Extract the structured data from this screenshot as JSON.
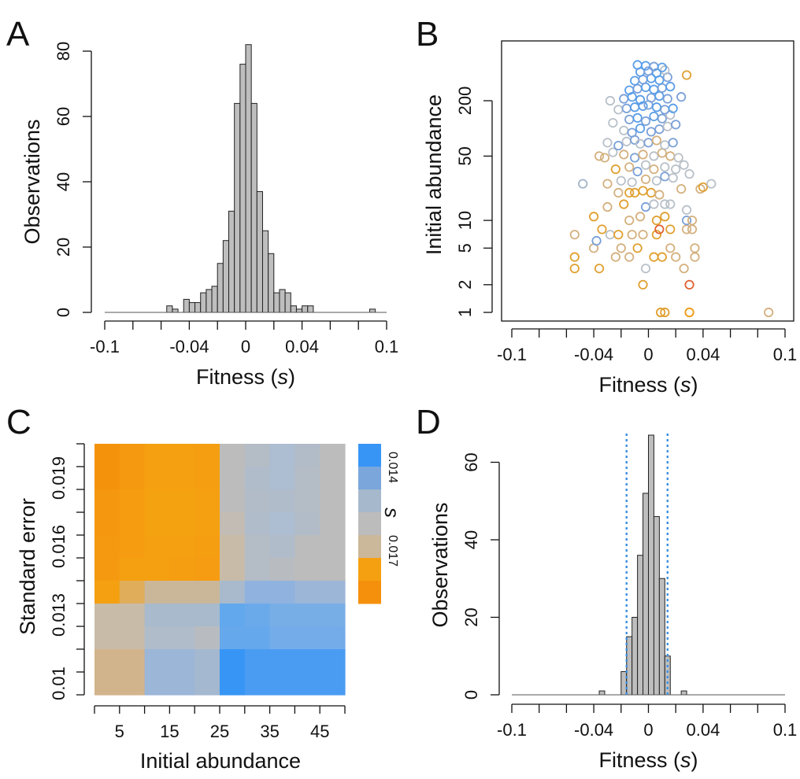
{
  "chart_data": [
    {
      "panel": "A",
      "type": "bar",
      "xlabel": "Fitness (s)",
      "xlabel_main": "Fitness (",
      "xlabel_var": "s",
      "xlabel_end": ")",
      "ylabel": "Observations",
      "xlim": [
        -0.1,
        0.1
      ],
      "ylim": [
        0,
        80
      ],
      "xticks": [
        -0.1,
        -0.04,
        0,
        0.04,
        0.1
      ],
      "xtick_labels": [
        "-0.1",
        "-0.04",
        "0",
        "0.04",
        "0.1"
      ],
      "yticks": [
        0,
        20,
        40,
        60,
        80
      ],
      "ytick_labels": [
        "0",
        "20",
        "40",
        "60",
        "80"
      ],
      "bin_width": 0.004,
      "bins": [
        {
          "x0": -0.056,
          "count": 2
        },
        {
          "x0": -0.052,
          "count": 1
        },
        {
          "x0": -0.048,
          "count": 0
        },
        {
          "x0": -0.044,
          "count": 4
        },
        {
          "x0": -0.04,
          "count": 3
        },
        {
          "x0": -0.036,
          "count": 3
        },
        {
          "x0": -0.032,
          "count": 6
        },
        {
          "x0": -0.028,
          "count": 7
        },
        {
          "x0": -0.024,
          "count": 8
        },
        {
          "x0": -0.02,
          "count": 15
        },
        {
          "x0": -0.016,
          "count": 22
        },
        {
          "x0": -0.012,
          "count": 31
        },
        {
          "x0": -0.008,
          "count": 64
        },
        {
          "x0": -0.004,
          "count": 76
        },
        {
          "x0": 0.0,
          "count": 82
        },
        {
          "x0": 0.004,
          "count": 64
        },
        {
          "x0": 0.008,
          "count": 37
        },
        {
          "x0": 0.012,
          "count": 25
        },
        {
          "x0": 0.016,
          "count": 18
        },
        {
          "x0": 0.02,
          "count": 6
        },
        {
          "x0": 0.024,
          "count": 7
        },
        {
          "x0": 0.028,
          "count": 6
        },
        {
          "x0": 0.032,
          "count": 2
        },
        {
          "x0": 0.036,
          "count": 1
        },
        {
          "x0": 0.04,
          "count": 2
        },
        {
          "x0": 0.044,
          "count": 2
        },
        {
          "x0": 0.088,
          "count": 1
        }
      ],
      "fill": "#bebebe"
    },
    {
      "panel": "B",
      "type": "scatter",
      "xlabel": "Fitness (s)",
      "xlabel_main": "Fitness (",
      "xlabel_var": "s",
      "xlabel_end": ")",
      "ylabel": "Initial abundance",
      "xlim": [
        -0.1,
        0.1
      ],
      "ylim": [
        1,
        600
      ],
      "yscale": "log",
      "xticks": [
        -0.1,
        -0.04,
        0,
        0.04,
        0.1
      ],
      "xtick_labels": [
        "-0.1",
        "-0.04",
        "0",
        "0.04",
        "0.1"
      ],
      "yticks": [
        1,
        2,
        5,
        10,
        50,
        200
      ],
      "ytick_labels": [
        "1",
        "2",
        "5",
        "10",
        "50",
        "200"
      ],
      "marker": "open-circle",
      "color_by": "standard error (blue = low, orange/red = high)",
      "points": [
        [
          0.03,
          1,
          "#f0a020"
        ],
        [
          0.012,
          1,
          "#e0a030"
        ],
        [
          0.009,
          1,
          "#e0a030"
        ],
        [
          0.03,
          1,
          "#f0a020"
        ],
        [
          0.088,
          1,
          "#d4b07e"
        ],
        [
          -0.004,
          2,
          "#e0a030"
        ],
        [
          0.03,
          2,
          "#e06030"
        ],
        [
          -0.054,
          3,
          "#e0a030"
        ],
        [
          -0.036,
          3,
          "#e0a030"
        ],
        [
          -0.002,
          3,
          "#b8c0c8"
        ],
        [
          0.026,
          3,
          "#d4b07e"
        ],
        [
          -0.054,
          4,
          "#e0a030"
        ],
        [
          -0.04,
          5,
          "#d4b07e"
        ],
        [
          -0.024,
          4,
          "#d4b07e"
        ],
        [
          -0.014,
          4,
          "#d4b07e"
        ],
        [
          0.004,
          4,
          "#e0a030"
        ],
        [
          0.01,
          4,
          "#e0a030"
        ],
        [
          0.02,
          4,
          "#d4b07e"
        ],
        [
          0.034,
          4,
          "#d4b07e"
        ],
        [
          -0.02,
          5,
          "#d4b07e"
        ],
        [
          -0.008,
          5,
          "#e0a030"
        ],
        [
          0.016,
          5,
          "#d4b07e"
        ],
        [
          0.034,
          5,
          "#d4b07e"
        ],
        [
          -0.054,
          7,
          "#d4b07e"
        ],
        [
          -0.034,
          8,
          "#e0a030"
        ],
        [
          -0.028,
          7,
          "#b8c0c8"
        ],
        [
          -0.022,
          7,
          "#e0a030"
        ],
        [
          -0.012,
          7,
          "#d4b07e"
        ],
        [
          -0.004,
          7,
          "#d4b07e"
        ],
        [
          0.006,
          7,
          "#e0a030"
        ],
        [
          0.008,
          8,
          "#e06030"
        ],
        [
          0.016,
          8,
          "#e0a030"
        ],
        [
          0.028,
          8,
          "#d4b07e"
        ],
        [
          0.032,
          8,
          "#d4b07e"
        ],
        [
          -0.038,
          6,
          "#7aa0d8"
        ],
        [
          -0.04,
          11,
          "#e0a030"
        ],
        [
          -0.014,
          10,
          "#d4b07e"
        ],
        [
          -0.006,
          11,
          "#d4b07e"
        ],
        [
          0.006,
          10,
          "#e0a030"
        ],
        [
          0.012,
          11,
          "#e0a030"
        ],
        [
          0.028,
          10,
          "#7aa0d8"
        ],
        [
          0.032,
          10,
          "#d4b07e"
        ],
        [
          -0.03,
          14,
          "#d4b07e"
        ],
        [
          -0.018,
          15,
          "#e0a030"
        ],
        [
          -0.002,
          14,
          "#7aa0d8"
        ],
        [
          0.004,
          15,
          "#b8c0c8"
        ],
        [
          0.012,
          15,
          "#b8c0c8"
        ],
        [
          0.016,
          15,
          "#b8c0c8"
        ],
        [
          0.028,
          13,
          "#b8c0c8"
        ],
        [
          -0.048,
          25,
          "#a0b4c8"
        ],
        [
          -0.022,
          20,
          "#d4b07e"
        ],
        [
          -0.014,
          20,
          "#e0a030"
        ],
        [
          -0.01,
          20,
          "#e0a030"
        ],
        [
          -0.004,
          21,
          "#e0a030"
        ],
        [
          0.002,
          20,
          "#e0a030"
        ],
        [
          0.008,
          19,
          "#d4b07e"
        ],
        [
          0.024,
          22,
          "#d4b07e"
        ],
        [
          0.038,
          22,
          "#d4b07e"
        ],
        [
          0.04,
          23,
          "#e0a030"
        ],
        [
          0.046,
          25,
          "#b8c0c8"
        ],
        [
          -0.03,
          25,
          "#d4b07e"
        ],
        [
          -0.02,
          27,
          "#b8c0c8"
        ],
        [
          -0.012,
          26,
          "#b8c0c8"
        ],
        [
          -0.002,
          28,
          "#d4b07e"
        ],
        [
          0.006,
          27,
          "#b8c0c8"
        ],
        [
          0.012,
          30,
          "#7aa0d8"
        ],
        [
          0.018,
          29,
          "#b8c0c8"
        ],
        [
          0.03,
          32,
          "#b8c0c8"
        ],
        [
          -0.024,
          36,
          "#e0a030"
        ],
        [
          -0.014,
          38,
          "#d4b07e"
        ],
        [
          -0.008,
          34,
          "#7aa0d8"
        ],
        [
          -0.002,
          40,
          "#b8c0c8"
        ],
        [
          0.004,
          36,
          "#d4b07e"
        ],
        [
          0.012,
          38,
          "#b8c0c8"
        ],
        [
          0.02,
          36,
          "#b8c0c8"
        ],
        [
          0.026,
          40,
          "#b8c0c8"
        ],
        [
          -0.036,
          50,
          "#d4b07e"
        ],
        [
          -0.032,
          48,
          "#d4b07e"
        ],
        [
          -0.026,
          55,
          "#b8c0c8"
        ],
        [
          -0.018,
          52,
          "#d4b07e"
        ],
        [
          -0.01,
          48,
          "#7aa0d8"
        ],
        [
          -0.004,
          52,
          "#d4b07e"
        ],
        [
          0.004,
          50,
          "#b8c0c8"
        ],
        [
          0.01,
          54,
          "#d4b07e"
        ],
        [
          0.016,
          50,
          "#d4b07e"
        ],
        [
          0.022,
          48,
          "#b8c0c8"
        ],
        [
          -0.03,
          70,
          "#b8c0c8"
        ],
        [
          -0.022,
          65,
          "#7aa0d8"
        ],
        [
          -0.016,
          72,
          "#b8c0c8"
        ],
        [
          -0.01,
          75,
          "#7aa0d8"
        ],
        [
          -0.006,
          68,
          "#b8c0c8"
        ],
        [
          0.0,
          70,
          "#7aa0d8"
        ],
        [
          0.006,
          74,
          "#d4b07e"
        ],
        [
          0.012,
          66,
          "#b8c0c8"
        ],
        [
          0.018,
          70,
          "#7aa0d8"
        ],
        [
          -0.018,
          95,
          "#b8c0c8"
        ],
        [
          -0.012,
          90,
          "#7aa0d8"
        ],
        [
          -0.006,
          100,
          "#5a9ee8"
        ],
        [
          0.002,
          92,
          "#7aa0d8"
        ],
        [
          0.008,
          98,
          "#7aa0d8"
        ],
        [
          0.014,
          105,
          "#b8c0c8"
        ],
        [
          0.02,
          110,
          "#7aa0d8"
        ],
        [
          -0.026,
          115,
          "#b8c0c8"
        ],
        [
          -0.014,
          125,
          "#7aa0d8"
        ],
        [
          -0.008,
          130,
          "#5a9ee8"
        ],
        [
          -0.002,
          120,
          "#7aa0d8"
        ],
        [
          0.004,
          135,
          "#5a9ee8"
        ],
        [
          0.01,
          128,
          "#7aa0d8"
        ],
        [
          0.016,
          140,
          "#b8c0c8"
        ],
        [
          -0.022,
          160,
          "#b8c0c8"
        ],
        [
          -0.016,
          165,
          "#7aa0d8"
        ],
        [
          -0.01,
          170,
          "#5a9ee8"
        ],
        [
          -0.004,
          175,
          "#5a9ee8"
        ],
        [
          0.0,
          180,
          "#7aa0d8"
        ],
        [
          0.006,
          170,
          "#5a9ee8"
        ],
        [
          0.012,
          160,
          "#7aa0d8"
        ],
        [
          0.018,
          165,
          "#5a9ee8"
        ],
        [
          -0.028,
          200,
          "#b8c0c8"
        ],
        [
          -0.018,
          210,
          "#7aa0d8"
        ],
        [
          -0.012,
          220,
          "#5a9ee8"
        ],
        [
          -0.006,
          205,
          "#5a9ee8"
        ],
        [
          0.002,
          215,
          "#7aa0d8"
        ],
        [
          0.008,
          225,
          "#5a9ee8"
        ],
        [
          0.014,
          210,
          "#7aa0d8"
        ],
        [
          0.024,
          220,
          "#7aa0d8"
        ],
        [
          -0.014,
          260,
          "#5a9ee8"
        ],
        [
          -0.008,
          270,
          "#7aa0d8"
        ],
        [
          -0.002,
          280,
          "#5a9ee8"
        ],
        [
          0.004,
          265,
          "#5a9ee8"
        ],
        [
          0.01,
          275,
          "#7aa0d8"
        ],
        [
          0.016,
          285,
          "#5a9ee8"
        ],
        [
          -0.01,
          330,
          "#5a9ee8"
        ],
        [
          -0.004,
          340,
          "#7aa0d8"
        ],
        [
          0.002,
          350,
          "#5a9ee8"
        ],
        [
          0.008,
          335,
          "#5a9ee8"
        ],
        [
          0.014,
          360,
          "#7aa0d8"
        ],
        [
          -0.006,
          410,
          "#5a9ee8"
        ],
        [
          0.0,
          420,
          "#7aa0d8"
        ],
        [
          0.006,
          400,
          "#5a9ee8"
        ],
        [
          0.012,
          430,
          "#b8c0c8"
        ],
        [
          0.028,
          380,
          "#e0a030"
        ],
        [
          -0.002,
          480,
          "#5a9ee8"
        ],
        [
          0.004,
          470,
          "#7aa0d8"
        ],
        [
          -0.008,
          490,
          "#5a9ee8"
        ],
        [
          0.01,
          460,
          "#5a9ee8"
        ]
      ]
    },
    {
      "panel": "C",
      "type": "heatmap",
      "xlabel": "Initial abundance",
      "ylabel": "Standard error",
      "xlim": [
        0,
        50
      ],
      "ylim": [
        0.0095,
        0.0205
      ],
      "xticks": [
        5,
        15,
        25,
        35,
        45
      ],
      "xtick_labels": [
        "5",
        "15",
        "25",
        "35",
        "45"
      ],
      "yticks": [
        0.01,
        0.013,
        0.016,
        0.019
      ],
      "ytick_labels": [
        "0.01",
        "0.013",
        "0.016",
        "0.019"
      ],
      "x_edges": [
        0,
        5,
        10,
        15,
        20,
        25,
        30,
        35,
        40,
        45,
        50
      ],
      "y_edges": [
        0.0095,
        0.0105,
        0.0115,
        0.0125,
        0.0135,
        0.0145,
        0.0155,
        0.0165,
        0.0175,
        0.0185,
        0.0195,
        0.0205
      ],
      "cell_colors_top_to_bottom": [
        [
          "#f5920c",
          "#f59a10",
          "#f5a010",
          "#f5a010",
          "#f59e12",
          "#bcbcbc",
          "#b4bcc6",
          "#adbdd2",
          "#b2bcc8",
          "#bcbcbc"
        ],
        [
          "#f5920c",
          "#f59a10",
          "#f5a010",
          "#f5a010",
          "#f59e12",
          "#bcbcbc",
          "#b0bcca",
          "#adbdd2",
          "#b4bcc6",
          "#bcbcbc"
        ],
        [
          "#f59810",
          "#f59c10",
          "#f5a210",
          "#f5a210",
          "#f5a010",
          "#bcbcbc",
          "#b2bcc8",
          "#b0bcca",
          "#b4bcc6",
          "#bcbcbc"
        ],
        [
          "#f59810",
          "#f59c10",
          "#f5a210",
          "#f5a210",
          "#f5a010",
          "#c2bcb4",
          "#b0bcca",
          "#adbdd2",
          "#b2bcc8",
          "#bcbcbc"
        ],
        [
          "#f59a10",
          "#f59c10",
          "#f5a010",
          "#f5a010",
          "#f59e12",
          "#c8bca8",
          "#b4bcc6",
          "#b0bcca",
          "#bcbcbc",
          "#bcbcbc"
        ],
        [
          "#f59a10",
          "#f5a010",
          "#f5a010",
          "#f59e12",
          "#f59c12",
          "#c8bca8",
          "#b4bcc6",
          "#b8bcc0",
          "#bcbcbc",
          "#bcbcbc"
        ],
        [
          "#f5a010",
          "#e0ad5a",
          "#cab79a",
          "#cab79a",
          "#cab79a",
          "#a8bacc",
          "#8fb2df",
          "#8fb2df",
          "#9cb6d8",
          "#9cb6d8"
        ],
        [
          "#c8bca8",
          "#c8bca8",
          "#a8bacc",
          "#a8bacc",
          "#a8bacc",
          "#62a8ec",
          "#6aaaea",
          "#78aee6",
          "#78aee6",
          "#78aee6"
        ],
        [
          "#c8bca8",
          "#c8bca8",
          "#b0bcca",
          "#b0bcca",
          "#b8bcc0",
          "#66a8ec",
          "#66a8ec",
          "#74acea",
          "#74acea",
          "#74acea"
        ],
        [
          "#d2b48c",
          "#d2b48c",
          "#9cb6d8",
          "#9cb6d8",
          "#a4b8d0",
          "#3796f5",
          "#4a9cf2",
          "#4a9cf2",
          "#4a9cf2",
          "#4a9cf2"
        ],
        [
          "#d2b48c",
          "#d2b48c",
          "#9cb6d8",
          "#9cb6d8",
          "#a4b8d0",
          "#3796f5",
          "#4a9cf2",
          "#4a9cf2",
          "#4a9cf2",
          "#4a9cf2"
        ]
      ],
      "legend": {
        "title": "s",
        "labels": [
          "0.014",
          "0.017"
        ],
        "swatches": [
          "#3796f5",
          "#7aa6dc",
          "#a6b8cc",
          "#bcbcbc",
          "#cbb79a",
          "#f5a010",
          "#f5900c"
        ]
      }
    },
    {
      "panel": "D",
      "type": "bar",
      "xlabel": "Fitness (s)",
      "xlabel_main": "Fitness (",
      "xlabel_var": "s",
      "xlabel_end": ")",
      "ylabel": "Observations",
      "xlim": [
        -0.1,
        0.1
      ],
      "ylim": [
        0,
        67
      ],
      "xticks": [
        -0.1,
        -0.04,
        0,
        0.04,
        0.1
      ],
      "xtick_labels": [
        "-0.1",
        "-0.04",
        "0",
        "0.04",
        "0.1"
      ],
      "yticks": [
        0,
        20,
        40,
        60
      ],
      "ytick_labels": [
        "0",
        "20",
        "40",
        "60"
      ],
      "bin_width": 0.004,
      "bins": [
        {
          "x0": -0.036,
          "count": 1
        },
        {
          "x0": -0.032,
          "count": 0
        },
        {
          "x0": -0.028,
          "count": 0
        },
        {
          "x0": -0.024,
          "count": 0
        },
        {
          "x0": -0.02,
          "count": 6
        },
        {
          "x0": -0.016,
          "count": 15
        },
        {
          "x0": -0.012,
          "count": 20
        },
        {
          "x0": -0.008,
          "count": 36
        },
        {
          "x0": -0.004,
          "count": 52
        },
        {
          "x0": 0.0,
          "count": 67
        },
        {
          "x0": 0.004,
          "count": 46
        },
        {
          "x0": 0.008,
          "count": 30
        },
        {
          "x0": 0.012,
          "count": 10
        },
        {
          "x0": 0.016,
          "count": 0
        },
        {
          "x0": 0.02,
          "count": 0
        },
        {
          "x0": 0.024,
          "count": 1
        }
      ],
      "vlines": [
        -0.016,
        0.014
      ],
      "vline_color": "#3d8fe0",
      "fill": "#bebebe"
    }
  ]
}
